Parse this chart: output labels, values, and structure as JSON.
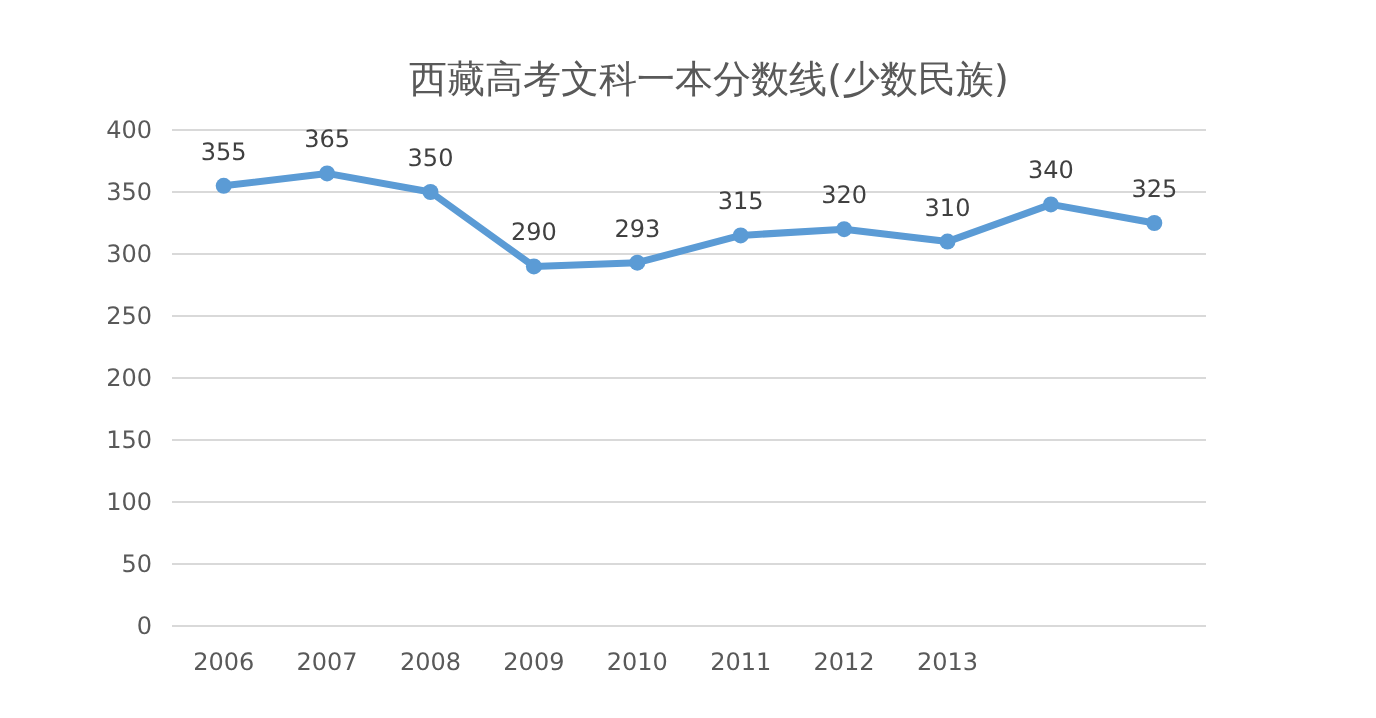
{
  "chart_data": {
    "type": "line",
    "title": "西藏高考文科一本分数线(少数民族)",
    "categories": [
      "2006",
      "2007",
      "2008",
      "2009",
      "2010",
      "2011",
      "2012",
      "2013",
      null,
      null
    ],
    "values": [
      355,
      365,
      350,
      290,
      293,
      315,
      320,
      310,
      340,
      325
    ],
    "color": "#5b9bd5",
    "ylim": [
      0,
      400
    ],
    "yticks": [
      0,
      50,
      100,
      150,
      200,
      250,
      300,
      350,
      400
    ],
    "grid": "y",
    "data_labels": true,
    "marker": "circle",
    "line_style": "solid"
  }
}
